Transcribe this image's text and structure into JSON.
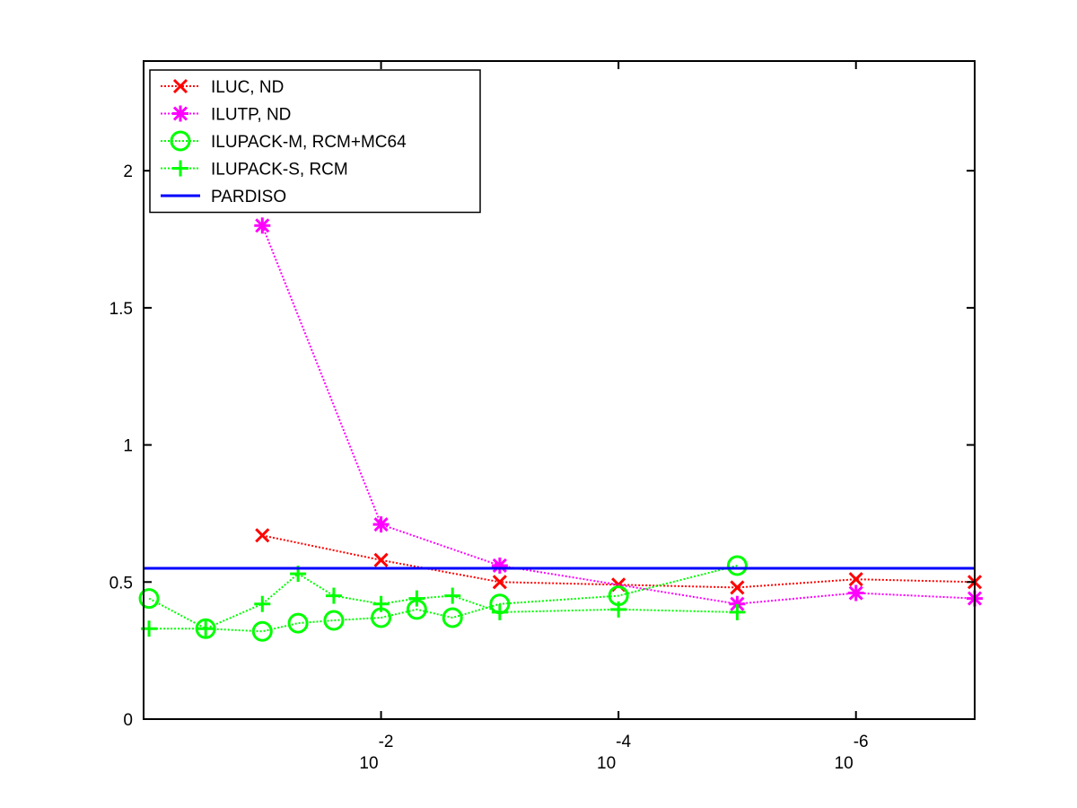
{
  "chart_data": {
    "type": "line",
    "title": "",
    "xlabel": "",
    "ylabel": "",
    "x_scale": "log-decreasing",
    "xlim": [
      1,
      1e-07
    ],
    "ylim": [
      0,
      2.4
    ],
    "y_ticks": [
      0,
      0.5,
      1,
      1.5,
      2
    ],
    "y_tick_labels": [
      "0",
      "0.5",
      "1",
      "1.5",
      "2"
    ],
    "x_ticks": [
      0.01,
      0.0001,
      1e-06
    ],
    "x_tick_bases": [
      "10",
      "10",
      "10"
    ],
    "x_tick_exponents": [
      "-2",
      "-4",
      "-6"
    ],
    "grid": false,
    "legend_position": "top-left",
    "series": [
      {
        "name": "ILUC,  ND",
        "color": "#ff0000",
        "marker": "x",
        "line_style": "dotted",
        "x": [
          0.1,
          0.01,
          0.001,
          0.0001,
          1e-05,
          1e-06,
          1e-07
        ],
        "y": [
          0.67,
          0.58,
          0.5,
          0.49,
          0.48,
          0.51,
          0.5
        ]
      },
      {
        "name": "ILUTP,  ND",
        "color": "#ff00ff",
        "marker": "asterisk",
        "line_style": "dotted",
        "x": [
          0.1,
          0.01,
          0.001,
          1e-05,
          1e-06,
          1e-07
        ],
        "y": [
          1.8,
          0.71,
          0.56,
          0.42,
          0.46,
          0.44
        ]
      },
      {
        "name": "ILUPACK-M, RCM+MC64",
        "color": "#00ff00",
        "marker": "circle",
        "line_style": "dotted",
        "x": [
          0.9,
          0.3,
          0.1,
          0.05,
          0.025,
          0.01,
          0.005,
          0.0025,
          0.001,
          0.0001,
          1e-05
        ],
        "y": [
          0.44,
          0.33,
          0.32,
          0.35,
          0.36,
          0.37,
          0.4,
          0.37,
          0.42,
          0.45,
          0.56
        ]
      },
      {
        "name": "ILUPACK-S, RCM",
        "color": "#00ff00",
        "marker": "plus",
        "line_style": "dotted",
        "x": [
          0.9,
          0.3,
          0.1,
          0.05,
          0.025,
          0.01,
          0.005,
          0.0025,
          0.001,
          0.0001,
          1e-05
        ],
        "y": [
          0.33,
          0.33,
          0.42,
          0.53,
          0.45,
          0.42,
          0.44,
          0.45,
          0.39,
          0.4,
          0.39
        ]
      },
      {
        "name": "PARDISO",
        "color": "#0000ff",
        "marker": "none",
        "line_style": "solid",
        "x": [
          1,
          1e-07
        ],
        "y": [
          0.55,
          0.55
        ]
      }
    ]
  }
}
